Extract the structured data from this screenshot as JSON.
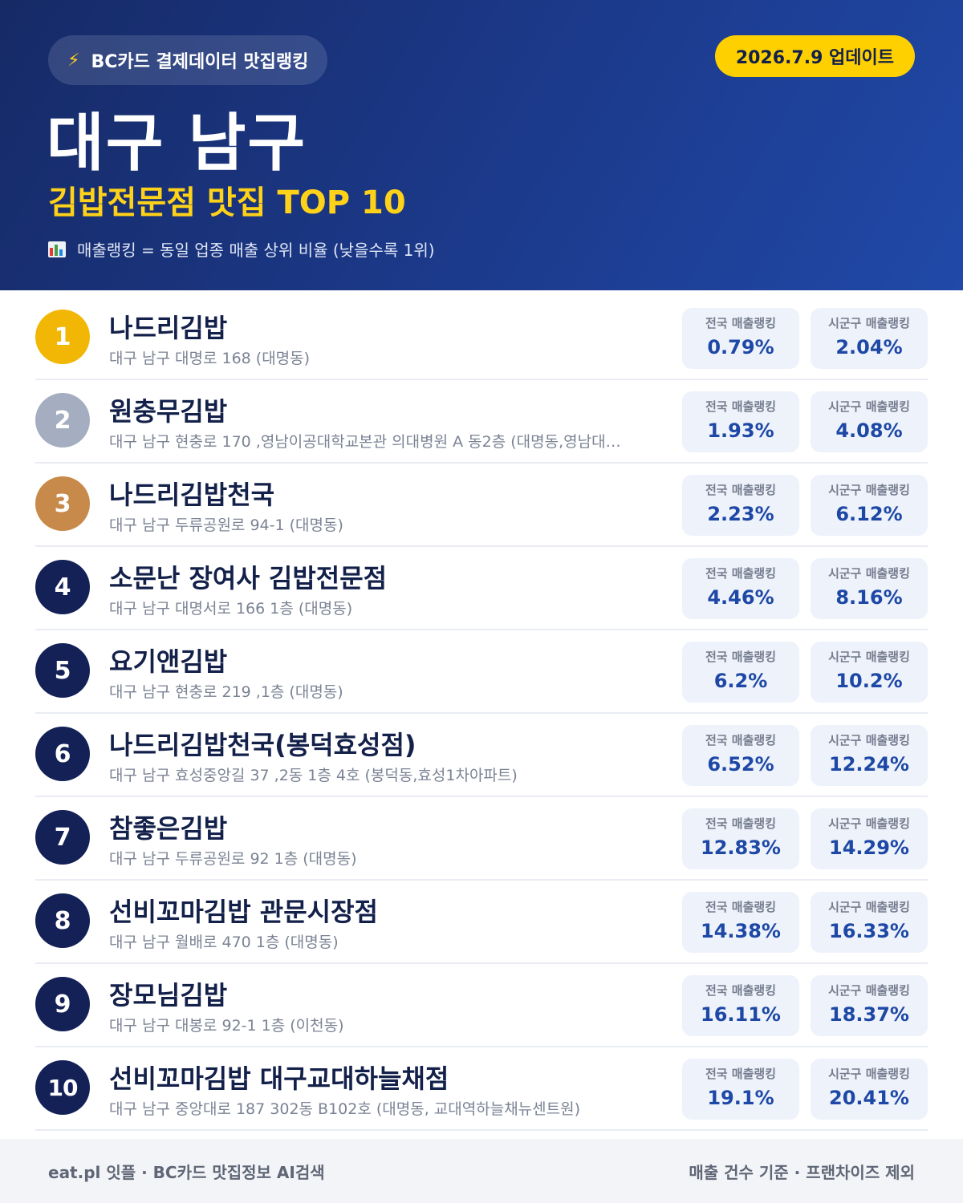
{
  "header": {
    "bolt_icon": "⚡",
    "source_label": "BC카드 결제데이터 맛집랭킹",
    "update_label": "2026.7.9 업데이트",
    "district": "대구 남구",
    "category_title": "김밥전문점 맛집 TOP 10",
    "legend_icon": "bar-chart-icon",
    "legend_text": "매출랭킹 = 동일 업종 매출 상위 비율 (낮을수록 1위)"
  },
  "stat_labels": {
    "national": "전국 매출랭킹",
    "local": "시군구 매출랭킹"
  },
  "restaurants": [
    {
      "rank": "1",
      "name": "나드리김밥",
      "address": "대구 남구 대명로 168 (대명동)",
      "national": "0.79%",
      "local": "2.04%"
    },
    {
      "rank": "2",
      "name": "원충무김밥",
      "address": "대구 남구 현충로 170 ,영남이공대학교본관 의대병원 A 동2층 (대명동,영남대…",
      "national": "1.93%",
      "local": "4.08%"
    },
    {
      "rank": "3",
      "name": "나드리김밥천국",
      "address": "대구 남구 두류공원로 94-1 (대명동)",
      "national": "2.23%",
      "local": "6.12%"
    },
    {
      "rank": "4",
      "name": "소문난 장여사 김밥전문점",
      "address": "대구 남구 대명서로 166 1층 (대명동)",
      "national": "4.46%",
      "local": "8.16%"
    },
    {
      "rank": "5",
      "name": "요기앤김밥",
      "address": "대구 남구 현충로 219 ,1층 (대명동)",
      "national": "6.2%",
      "local": "10.2%"
    },
    {
      "rank": "6",
      "name": "나드리김밥천국(봉덕효성점)",
      "address": "대구 남구 효성중앙길 37 ,2동 1층 4호 (봉덕동,효성1차아파트)",
      "national": "6.52%",
      "local": "12.24%"
    },
    {
      "rank": "7",
      "name": "참좋은김밥",
      "address": "대구 남구 두류공원로 92 1층 (대명동)",
      "national": "12.83%",
      "local": "14.29%"
    },
    {
      "rank": "8",
      "name": "선비꼬마김밥 관문시장점",
      "address": "대구 남구 월배로 470 1층 (대명동)",
      "national": "14.38%",
      "local": "16.33%"
    },
    {
      "rank": "9",
      "name": "장모님김밥",
      "address": "대구 남구 대봉로 92-1 1층 (이천동)",
      "national": "16.11%",
      "local": "18.37%"
    },
    {
      "rank": "10",
      "name": "선비꼬마김밥 대구교대하늘채점",
      "address": "대구 남구 중앙대로 187 302동 B102호 (대명동, 교대역하늘채뉴센트원)",
      "national": "19.1%",
      "local": "20.41%"
    }
  ],
  "footer": {
    "left": "eat.pl 잇플 · BC카드 맛집정보 AI검색",
    "right": "매출 건수 기준 · 프랜차이즈 제외"
  },
  "colors": {
    "header_dark": "#162a66",
    "header_light": "#2049a8",
    "accent_yellow": "#ffd000",
    "rank_gold": "#f2b705",
    "rank_silver": "#a5aec0",
    "rank_bronze": "#c88a4a",
    "rank_default": "#132157",
    "stat_value": "#1d48a6"
  }
}
